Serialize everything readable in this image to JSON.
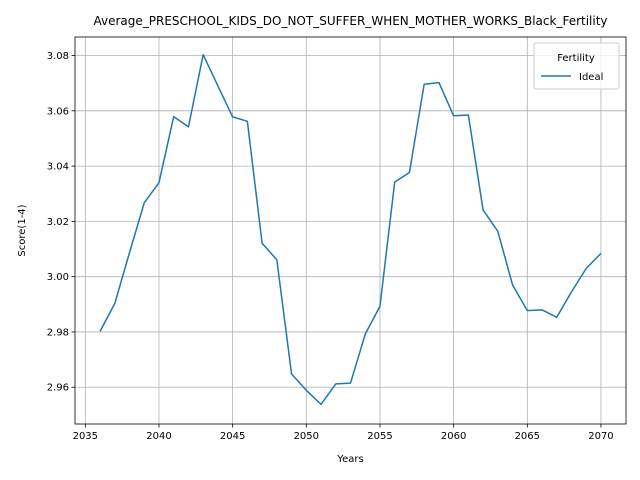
{
  "chart_data": {
    "type": "line",
    "title": "Average_PRESCHOOL_KIDS_DO_NOT_SUFFER_WHEN_MOTHER_WORKS_Black_Fertility",
    "xlabel": "Years",
    "ylabel": "Score(1-4)",
    "xlim": [
      2034.3,
      2071.7
    ],
    "ylim": [
      2.9467,
      3.0867
    ],
    "xticks": [
      2035,
      2040,
      2045,
      2050,
      2055,
      2060,
      2065,
      2070
    ],
    "yticks": [
      2.96,
      2.98,
      3.0,
      3.02,
      3.04,
      3.06,
      3.08
    ],
    "ytick_labels": [
      "2.96",
      "2.98",
      "3.00",
      "3.02",
      "3.04",
      "3.06",
      "3.08"
    ],
    "grid": true,
    "legend": {
      "title": "Fertility",
      "position": "top-right"
    },
    "x": [
      2036,
      2037,
      2038,
      2039,
      2040,
      2041,
      2042,
      2043,
      2044,
      2045,
      2046,
      2047,
      2048,
      2049,
      2050,
      2051,
      2052,
      2053,
      2054,
      2055,
      2056,
      2057,
      2058,
      2059,
      2060,
      2061,
      2062,
      2063,
      2064,
      2065,
      2066,
      2067,
      2068,
      2069,
      2070
    ],
    "series": [
      {
        "name": "Ideal",
        "color": "#1f77b4",
        "values": [
          2.9802,
          2.9903,
          3.0087,
          3.0267,
          3.034,
          3.0579,
          3.0542,
          3.0803,
          3.069,
          3.0578,
          3.0562,
          3.0121,
          3.0061,
          2.9648,
          2.9589,
          2.9538,
          2.9612,
          2.9615,
          2.9792,
          2.9893,
          3.0342,
          3.0377,
          3.0696,
          3.0702,
          3.0582,
          3.0585,
          3.0241,
          3.0164,
          2.997,
          2.9877,
          2.988,
          2.9853,
          2.9945,
          3.003,
          3.0084
        ]
      }
    ]
  }
}
